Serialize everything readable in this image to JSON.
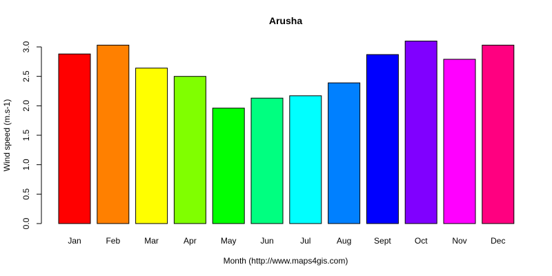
{
  "chart_data": {
    "type": "bar",
    "title": "Arusha",
    "xlabel": "Month (http://www.maps4gis.com)",
    "ylabel": "Wind speed (m.s-1)",
    "categories": [
      "Jan",
      "Feb",
      "Mar",
      "Apr",
      "May",
      "Jun",
      "Jul",
      "Aug",
      "Sept",
      "Oct",
      "Nov",
      "Dec"
    ],
    "values": [
      2.88,
      3.03,
      2.64,
      2.5,
      1.96,
      2.13,
      2.17,
      2.39,
      2.87,
      3.1,
      2.79,
      3.03
    ],
    "colors": [
      "#FF0000",
      "#FF8000",
      "#FFFF00",
      "#80FF00",
      "#00FF00",
      "#00FF80",
      "#00FFFF",
      "#0080FF",
      "#0000FF",
      "#8000FF",
      "#FF00FF",
      "#FF0080"
    ],
    "yticks": [
      "0.0",
      "0.5",
      "1.0",
      "1.5",
      "2.0",
      "2.5",
      "3.0"
    ],
    "ylim": [
      0,
      3.0
    ],
    "grid": false,
    "legend": "none"
  }
}
